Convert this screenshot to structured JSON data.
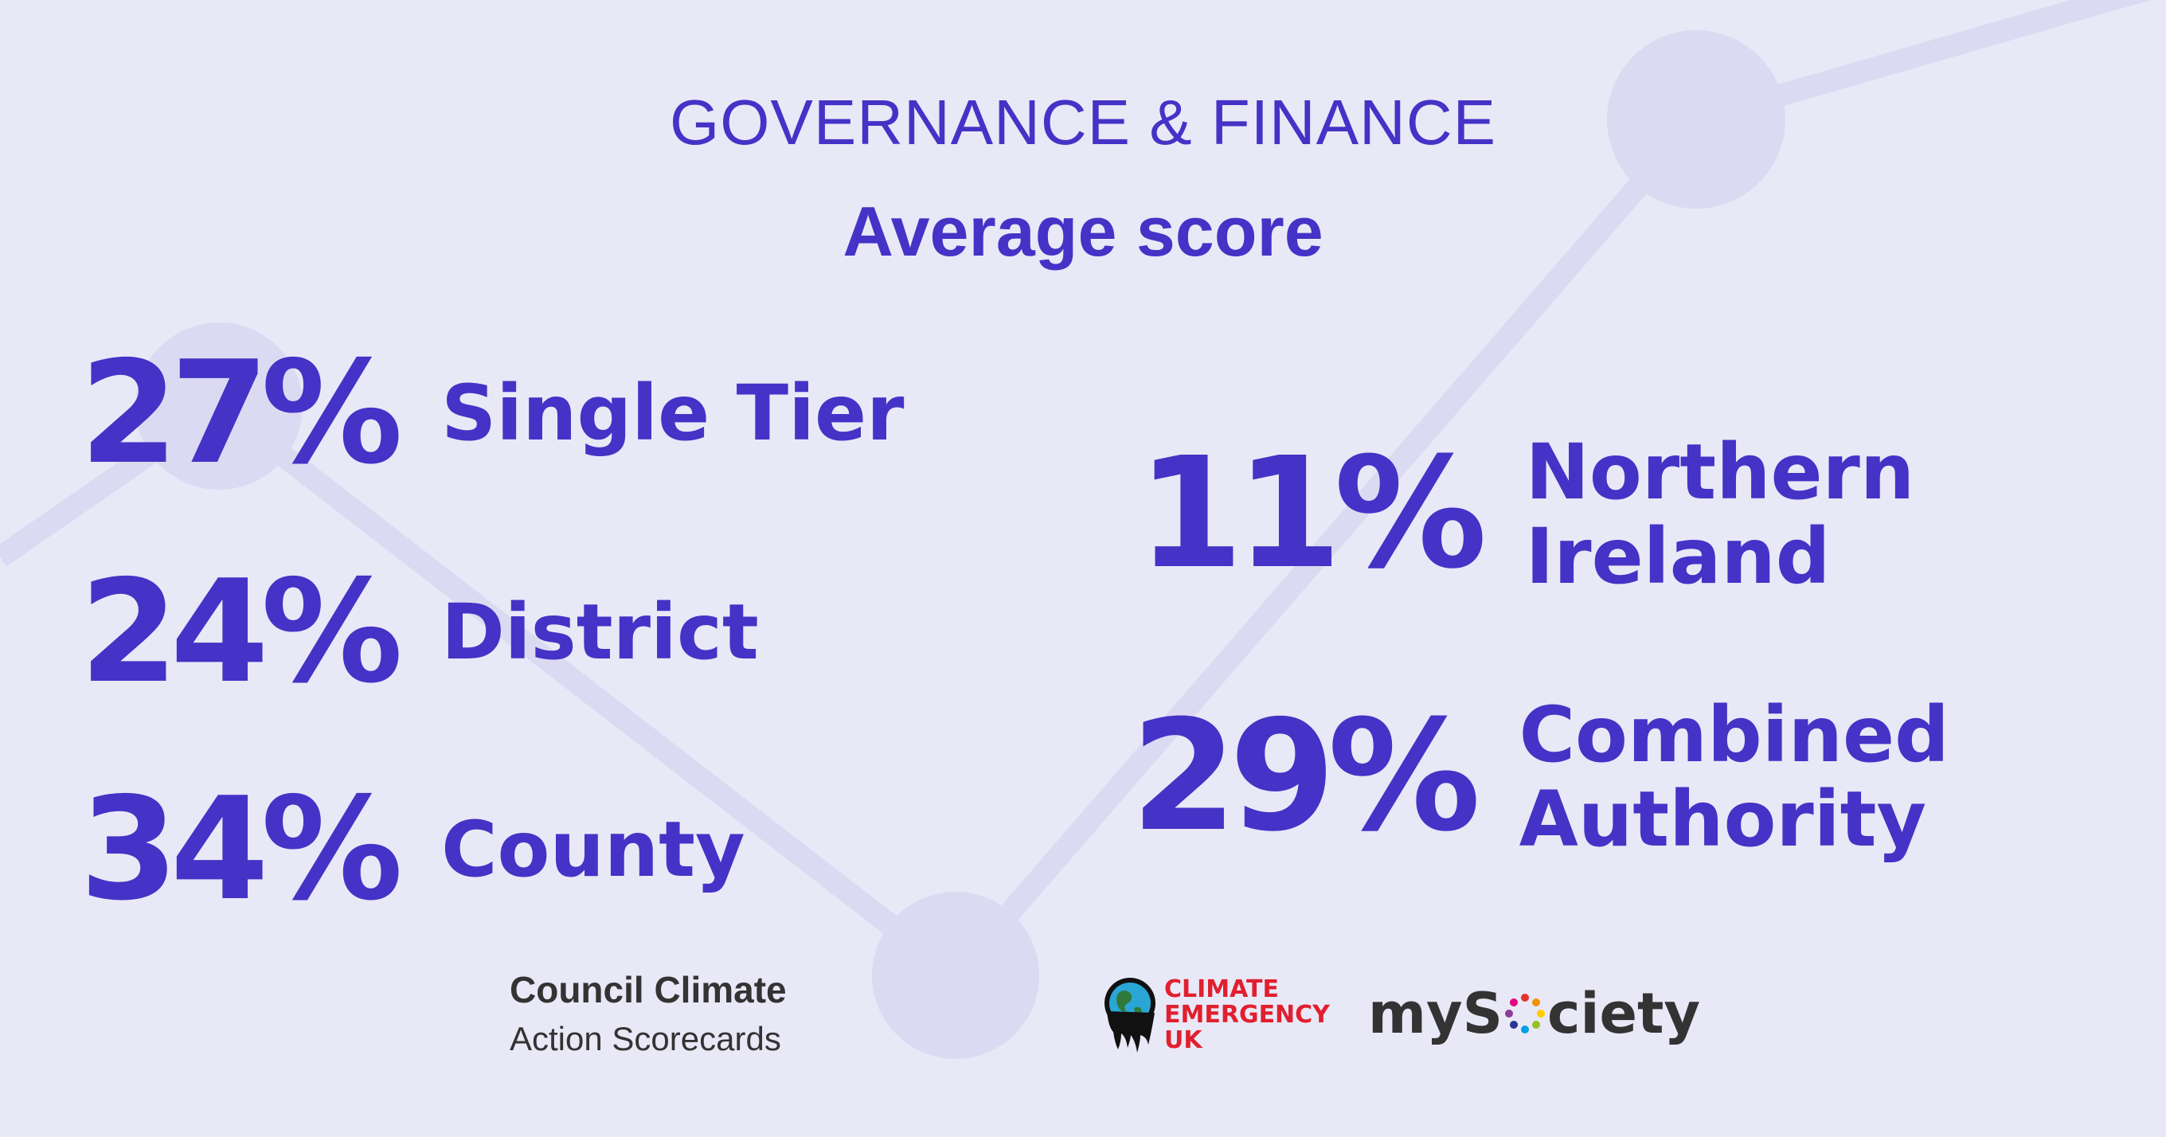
{
  "header": {
    "title": "GOVERNANCE & FINANCE",
    "subtitle": "Average score"
  },
  "stats": [
    {
      "percent": "27%",
      "label_lines": [
        "Single Tier"
      ]
    },
    {
      "percent": "24%",
      "label_lines": [
        "District"
      ]
    },
    {
      "percent": "34%",
      "label_lines": [
        "County"
      ]
    },
    {
      "percent": "11%",
      "label_lines": [
        "Northern",
        "Ireland"
      ]
    },
    {
      "percent": "29%",
      "label_lines": [
        "Combined",
        "Authority"
      ]
    }
  ],
  "footer": {
    "ccas_line1": "Council Climate",
    "ccas_line2": "Action Scorecards",
    "ceuk_lines": [
      "CLIMATE",
      "EMERGENCY",
      "UK"
    ],
    "mysociety_pre": "myS",
    "mysociety_post": "ciety"
  },
  "colors": {
    "background": "#e9e8f7",
    "accent": "#4433c6",
    "decor": "#dcdaf3",
    "ceuk_red": "#e0202f",
    "logo_text": "#333333"
  }
}
